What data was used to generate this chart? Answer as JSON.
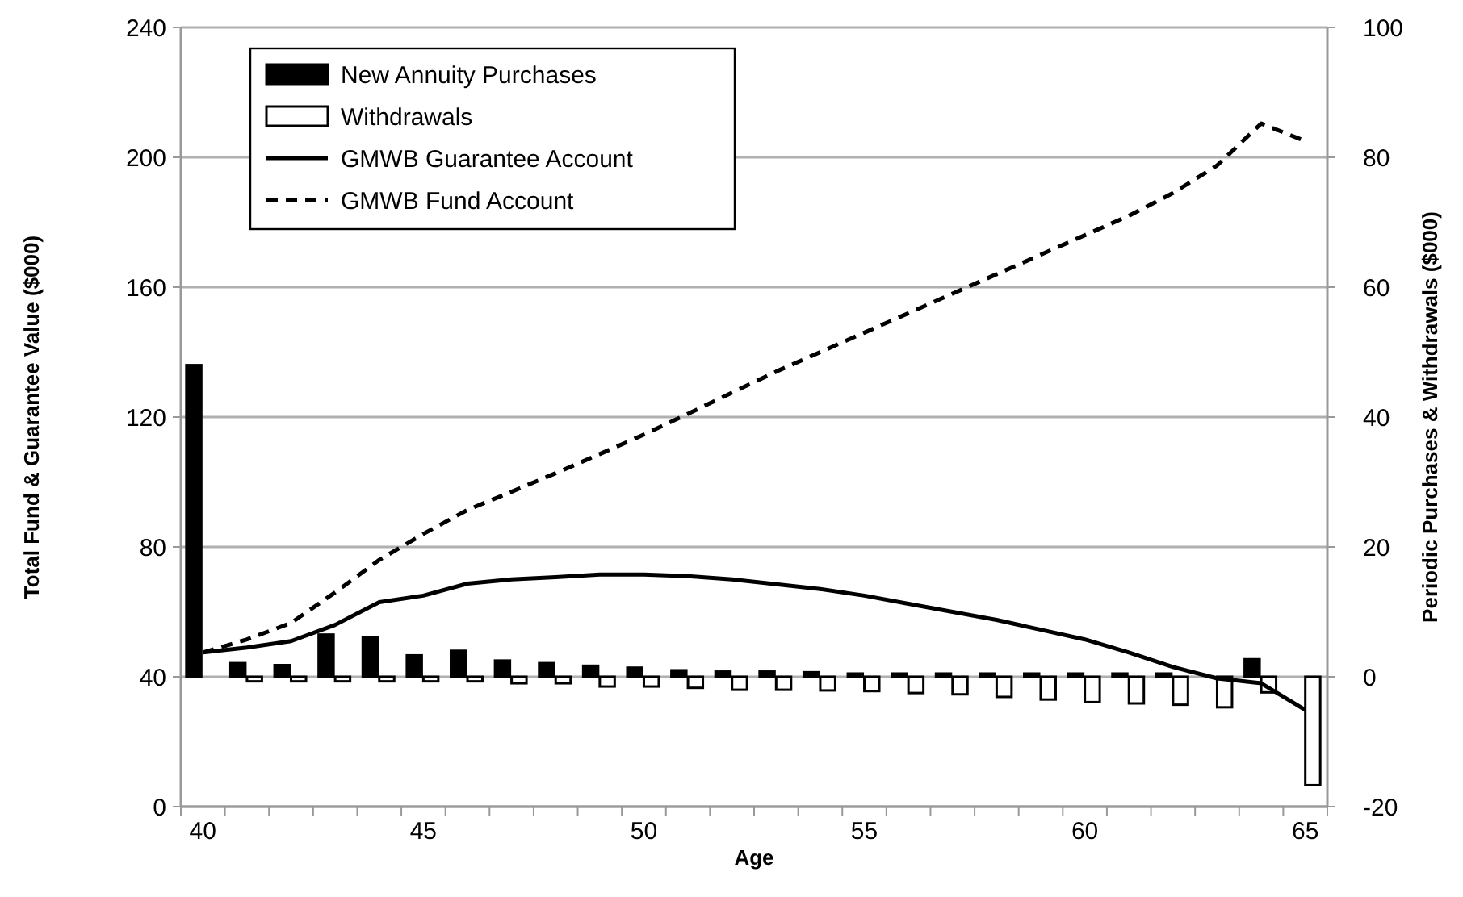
{
  "chart_data": {
    "type": "bar",
    "xlabel": "Age",
    "ylabel": "Total Fund & Guarantee Value ($000)",
    "y2label": "Periodic Purchases & Withdrawals ($000)",
    "categories": [
      "40",
      null,
      null,
      null,
      null,
      "45",
      null,
      null,
      null,
      null,
      "50",
      null,
      null,
      null,
      null,
      "55",
      null,
      null,
      null,
      null,
      "60",
      null,
      null,
      null,
      null,
      "65"
    ],
    "series": [
      {
        "name": "New Annuity Purchases",
        "axis": "y2",
        "color": "#000000",
        "values": [
          48,
          2.1,
          1.8,
          6.5,
          6.1,
          3.3,
          4.0,
          2.5,
          2.1,
          1.7,
          1.4,
          1.0,
          0.8,
          0.8,
          0.7,
          0.5,
          0.5,
          0.5,
          0.5,
          0.5,
          0.5,
          0.5,
          0.5,
          null,
          2.7,
          0
        ]
      },
      {
        "name": "Withdrawals",
        "axis": "y2",
        "color": "#ffffff",
        "values": [
          0,
          -0.7,
          -0.7,
          -0.7,
          -0.7,
          -0.7,
          -0.7,
          -1.0,
          -1.0,
          -1.5,
          -1.5,
          -1.7,
          -2.0,
          -2.0,
          -2.1,
          -2.2,
          -2.5,
          -2.7,
          -3.1,
          -3.5,
          -3.9,
          -4.1,
          -4.3,
          -4.7,
          -2.4,
          -16.7
        ]
      },
      {
        "name": "GMWB Guarantee Account",
        "type": "line",
        "axis": "y",
        "color": "#000000",
        "line_style": "solid",
        "values": [
          47.5,
          49,
          51,
          56,
          63,
          65,
          68.7,
          70,
          70.7,
          71.5,
          71.5,
          71,
          70,
          68.5,
          67,
          65,
          62.5,
          60,
          57.5,
          54.5,
          51.5,
          47.5,
          43,
          39.5,
          38,
          29.8
        ]
      },
      {
        "name": "GMWB Fund Account",
        "type": "line",
        "axis": "y",
        "color": "#000000",
        "line_style": "dashed",
        "values": [
          47.5,
          51.5,
          56.6,
          66,
          76,
          84,
          91.4,
          97,
          102.7,
          108.6,
          114.6,
          121,
          127.5,
          134,
          140,
          146,
          152,
          158,
          164,
          170,
          176,
          182,
          189,
          197.5,
          210.4,
          205
        ]
      }
    ],
    "ylim": [
      0,
      240
    ],
    "yticks": [
      0,
      40,
      80,
      120,
      160,
      200,
      240
    ],
    "y2lim": [
      -20,
      100
    ],
    "y2ticks": [
      -20,
      0,
      20,
      40,
      60,
      80,
      100
    ],
    "grid": "y",
    "legend": "top left",
    "marker": "none"
  }
}
